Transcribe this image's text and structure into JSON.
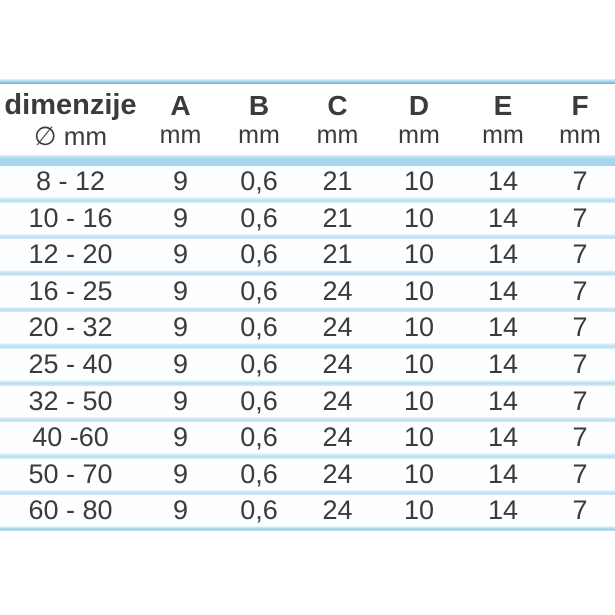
{
  "table": {
    "header": {
      "dim_title": "dimenzije",
      "dim_unit": "∅ mm",
      "columns": [
        {
          "letter": "A",
          "unit": "mm"
        },
        {
          "letter": "B",
          "unit": "mm"
        },
        {
          "letter": "C",
          "unit": "mm"
        },
        {
          "letter": "D",
          "unit": "mm"
        },
        {
          "letter": "E",
          "unit": "mm"
        },
        {
          "letter": "F",
          "unit": "mm"
        }
      ]
    },
    "rows": [
      [
        "8 - 12",
        "9",
        "0,6",
        "21",
        "10",
        "14",
        "7"
      ],
      [
        "10 - 16",
        "9",
        "0,6",
        "21",
        "10",
        "14",
        "7"
      ],
      [
        "12 - 20",
        "9",
        "0,6",
        "21",
        "10",
        "14",
        "7"
      ],
      [
        "16 - 25",
        "9",
        "0,6",
        "24",
        "10",
        "14",
        "7"
      ],
      [
        "20 - 32",
        "9",
        "0,6",
        "24",
        "10",
        "14",
        "7"
      ],
      [
        "25 - 40",
        "9",
        "0,6",
        "24",
        "10",
        "14",
        "7"
      ],
      [
        "32 - 50",
        "9",
        "0,6",
        "24",
        "10",
        "14",
        "7"
      ],
      [
        "40 -60",
        "9",
        "0,6",
        "24",
        "10",
        "14",
        "7"
      ],
      [
        "50 - 70",
        "9",
        "0,6",
        "24",
        "10",
        "14",
        "7"
      ],
      [
        "60 - 80",
        "9",
        "0,6",
        "24",
        "10",
        "14",
        "7"
      ]
    ]
  },
  "chart_data": {
    "type": "table",
    "title": "",
    "columns": [
      "dimenzije ∅ mm",
      "A mm",
      "B mm",
      "C mm",
      "D mm",
      "E mm",
      "F mm"
    ],
    "rows": [
      [
        "8 - 12",
        "9",
        "0,6",
        "21",
        "10",
        "14",
        "7"
      ],
      [
        "10 - 16",
        "9",
        "0,6",
        "21",
        "10",
        "14",
        "7"
      ],
      [
        "12 - 20",
        "9",
        "0,6",
        "21",
        "10",
        "14",
        "7"
      ],
      [
        "16 - 25",
        "9",
        "0,6",
        "24",
        "10",
        "14",
        "7"
      ],
      [
        "20 - 32",
        "9",
        "0,6",
        "24",
        "10",
        "14",
        "7"
      ],
      [
        "25 - 40",
        "9",
        "0,6",
        "24",
        "10",
        "14",
        "7"
      ],
      [
        "32 - 50",
        "9",
        "0,6",
        "24",
        "10",
        "14",
        "7"
      ],
      [
        "40 -60",
        "9",
        "0,6",
        "24",
        "10",
        "14",
        "7"
      ],
      [
        "50 - 70",
        "9",
        "0,6",
        "24",
        "10",
        "14",
        "7"
      ],
      [
        "60 - 80",
        "9",
        "0,6",
        "24",
        "10",
        "14",
        "7"
      ]
    ],
    "layout": {
      "grid": "horizontal light-blue separator bands",
      "header_rows": 1
    }
  },
  "colors": {
    "text": "#3b3b3b",
    "accent-blue": "#63b1d8",
    "band-strong": "#a6d7ee",
    "band-light": "#b9def0",
    "row-bg": "#fcfeff"
  }
}
